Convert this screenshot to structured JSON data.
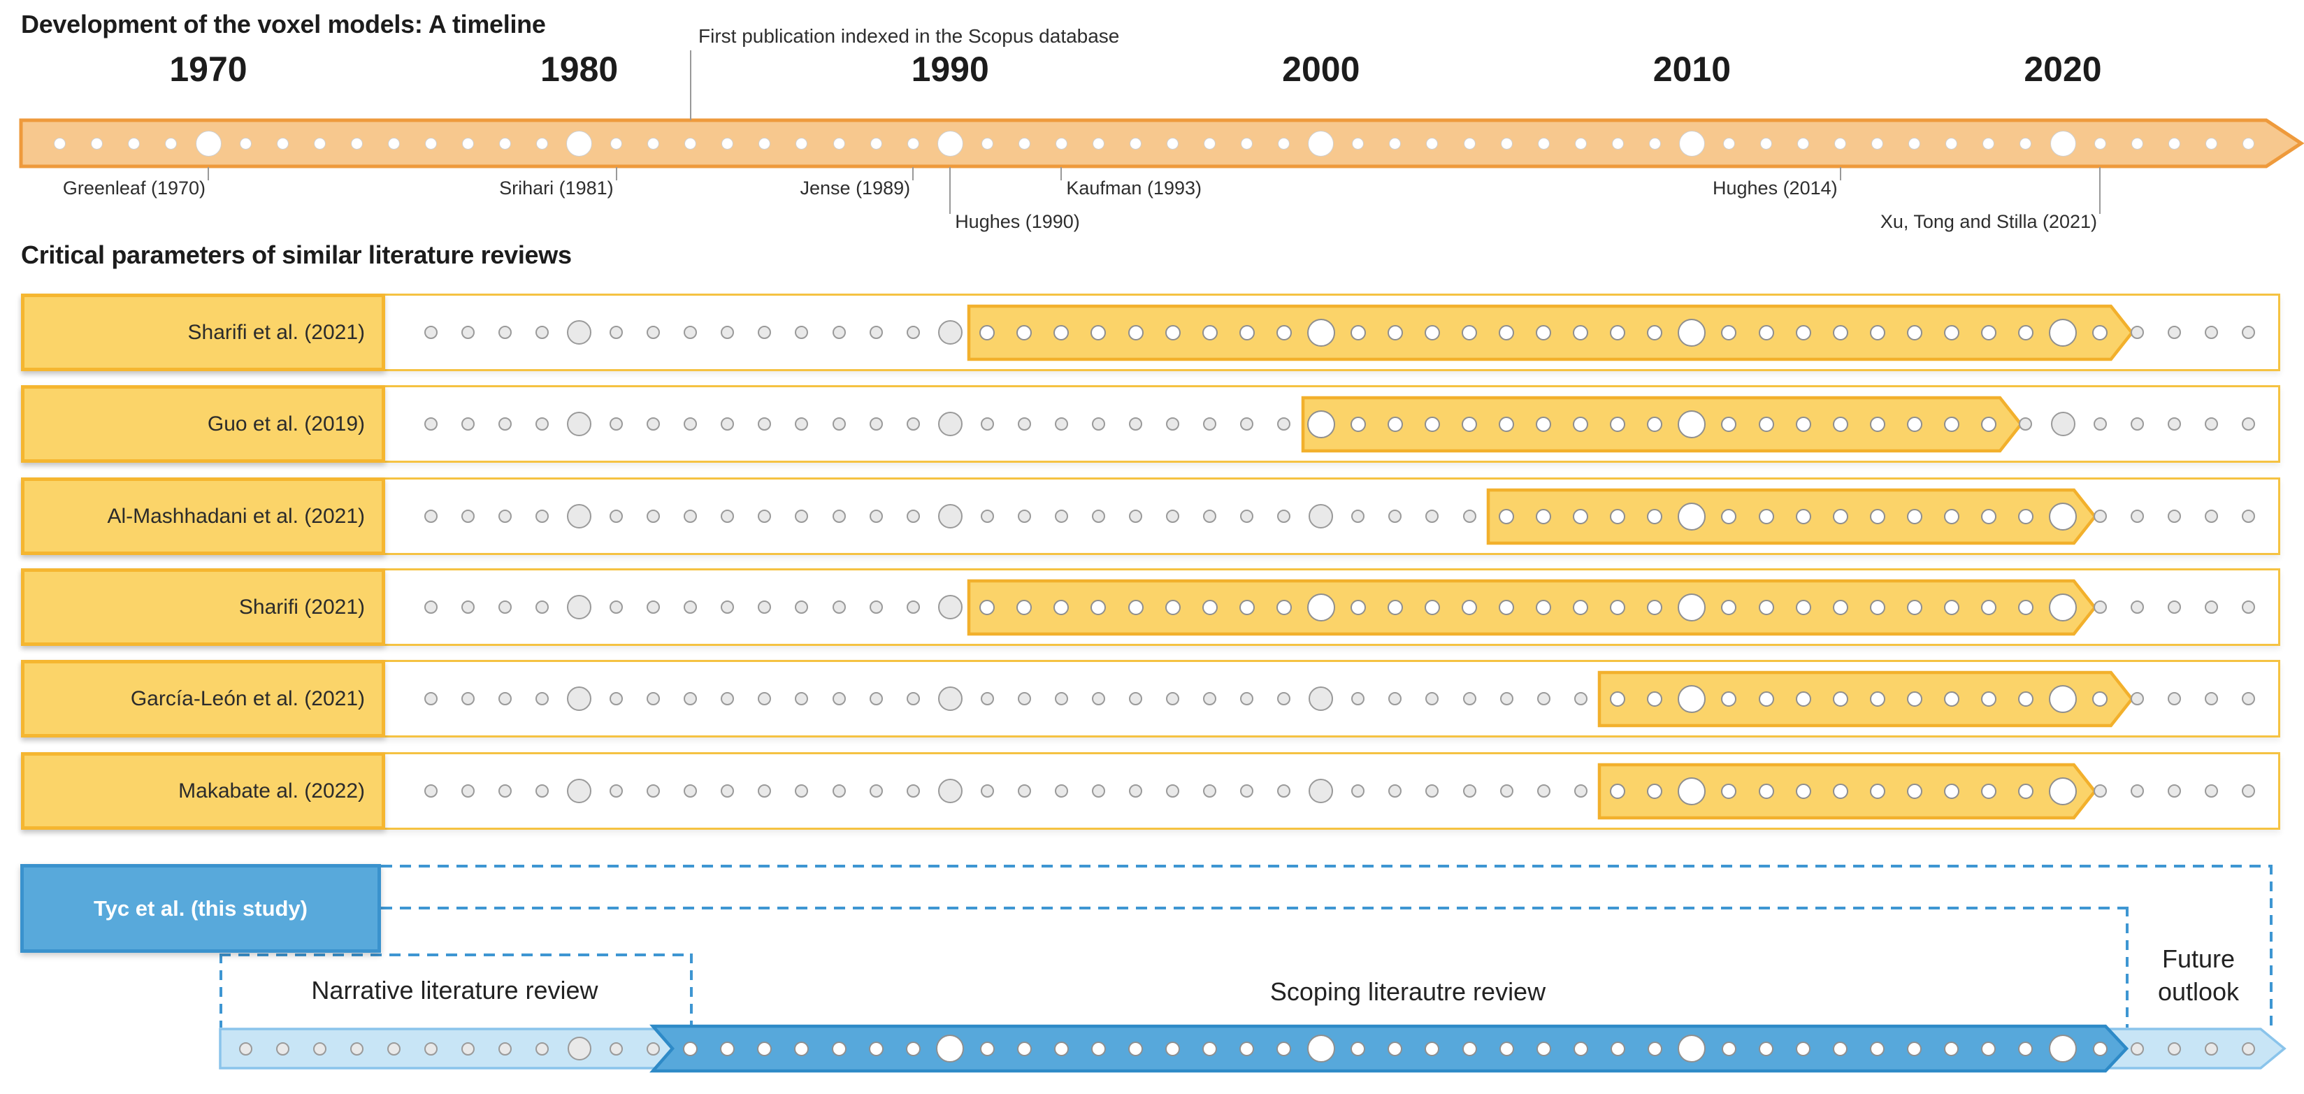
{
  "header": {
    "title": "Development of the voxel models: A timeline",
    "scopus_note": "First publication indexed in the Scopus database",
    "scopus_year": 1983
  },
  "timeline": {
    "start_year": 1966,
    "end_year": 2025,
    "decades": [
      {
        "label": "1970",
        "year": 1970
      },
      {
        "label": "1980",
        "year": 1980
      },
      {
        "label": "1990",
        "year": 1990
      },
      {
        "label": "2000",
        "year": 2000
      },
      {
        "label": "2010",
        "year": 2010
      },
      {
        "label": "2020",
        "year": 2020
      }
    ],
    "annotations": [
      {
        "label": "Greenleaf (1970)",
        "year": 1970,
        "side": "left",
        "level": 1
      },
      {
        "label": "Srihari (1981)",
        "year": 1981,
        "side": "left",
        "level": 1
      },
      {
        "label": "Jense (1989)",
        "year": 1989,
        "side": "left",
        "level": 1
      },
      {
        "label": "Hughes (1990)",
        "year": 1990,
        "side": "right",
        "level": 2
      },
      {
        "label": "Kaufman (1993)",
        "year": 1993,
        "side": "right",
        "level": 1
      },
      {
        "label": "Hughes (2014)",
        "year": 2014,
        "side": "left",
        "level": 1
      },
      {
        "label": "Xu, Tong and Stilla (2021)",
        "year": 2021,
        "side": "left",
        "level": 2
      }
    ]
  },
  "reviews": {
    "heading": "Critical parameters of similar literature reviews",
    "dot_start_year": 1976,
    "dot_end_year": 2025,
    "rows": [
      {
        "label": "Sharifi et al. (2021)",
        "from": 1991,
        "to": 2021
      },
      {
        "label": "Guo et al. (2019)",
        "from": 2000,
        "to": 2018
      },
      {
        "label": "Al-Mashhadani et al. (2021)",
        "from": 2005,
        "to": 2020
      },
      {
        "label": "Sharifi (2021)",
        "from": 1991,
        "to": 2020
      },
      {
        "label": "García-León et al. (2021)",
        "from": 2008,
        "to": 2021
      },
      {
        "label": "Makabate al. (2022)",
        "from": 2008,
        "to": 2020
      }
    ]
  },
  "study": {
    "label": "Tyc et al. (this study)",
    "dot_start_year": 1971,
    "dot_end_year": 2025,
    "phases": [
      {
        "label": "Narrative literature review",
        "from": 1971,
        "to": 1982
      },
      {
        "label": "Scoping literautre review",
        "from": 1983,
        "to": 2021
      },
      {
        "label": "Future outlook",
        "from": 2022,
        "to": 2025
      }
    ]
  },
  "colors": {
    "orange_border": "#EE9A3C",
    "orange_fill": "#F7C88E",
    "row_border": "#F5C242",
    "label_fill": "#FBD469",
    "label_border": "#F5B630",
    "highlight_fill": "#FBD369",
    "highlight_border": "#F2B02C",
    "gray_dot_fill": "#E9E9E9",
    "gray_dot_stroke": "#9A9A9A",
    "white_dot_stroke": "#8F8F8F",
    "study_box_fill": "#58A9DB",
    "study_box_border": "#3A92CD",
    "dashed_line": "#3E96D2",
    "scoping_fill": "#57A8DB",
    "scoping_border": "#2E8AC7",
    "future_fill": "#C8E5F6",
    "future_band_border": "#8AC4EB",
    "annotation_line": "#999999",
    "text_dark": "#1C1C1C"
  }
}
